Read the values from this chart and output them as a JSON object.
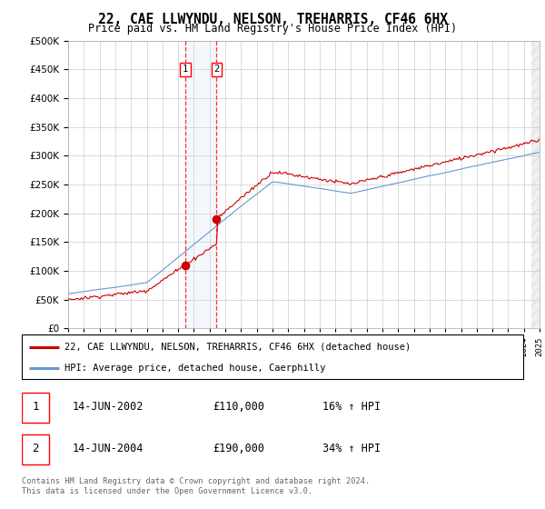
{
  "title": "22, CAE LLWYNDU, NELSON, TREHARRIS, CF46 6HX",
  "subtitle": "Price paid vs. HM Land Registry's House Price Index (HPI)",
  "legend_entry1": "22, CAE LLWYNDU, NELSON, TREHARRIS, CF46 6HX (detached house)",
  "legend_entry2": "HPI: Average price, detached house, Caerphilly",
  "transaction1_date": "14-JUN-2002",
  "transaction1_price": 110000,
  "transaction1_hpi_text": "16% ↑ HPI",
  "transaction2_date": "14-JUN-2004",
  "transaction2_price": 190000,
  "transaction2_hpi_text": "34% ↑ HPI",
  "footer": "Contains HM Land Registry data © Crown copyright and database right 2024.\nThis data is licensed under the Open Government Licence v3.0.",
  "hpi_color": "#6699cc",
  "price_color": "#cc0000",
  "ylim": [
    0,
    500000
  ],
  "yticks": [
    0,
    50000,
    100000,
    150000,
    200000,
    250000,
    300000,
    350000,
    400000,
    450000,
    500000
  ],
  "transaction1_year": 2002.45,
  "transaction2_year": 2004.45,
  "xlim": [
    1995,
    2025
  ],
  "hatch_start": 2024.5
}
